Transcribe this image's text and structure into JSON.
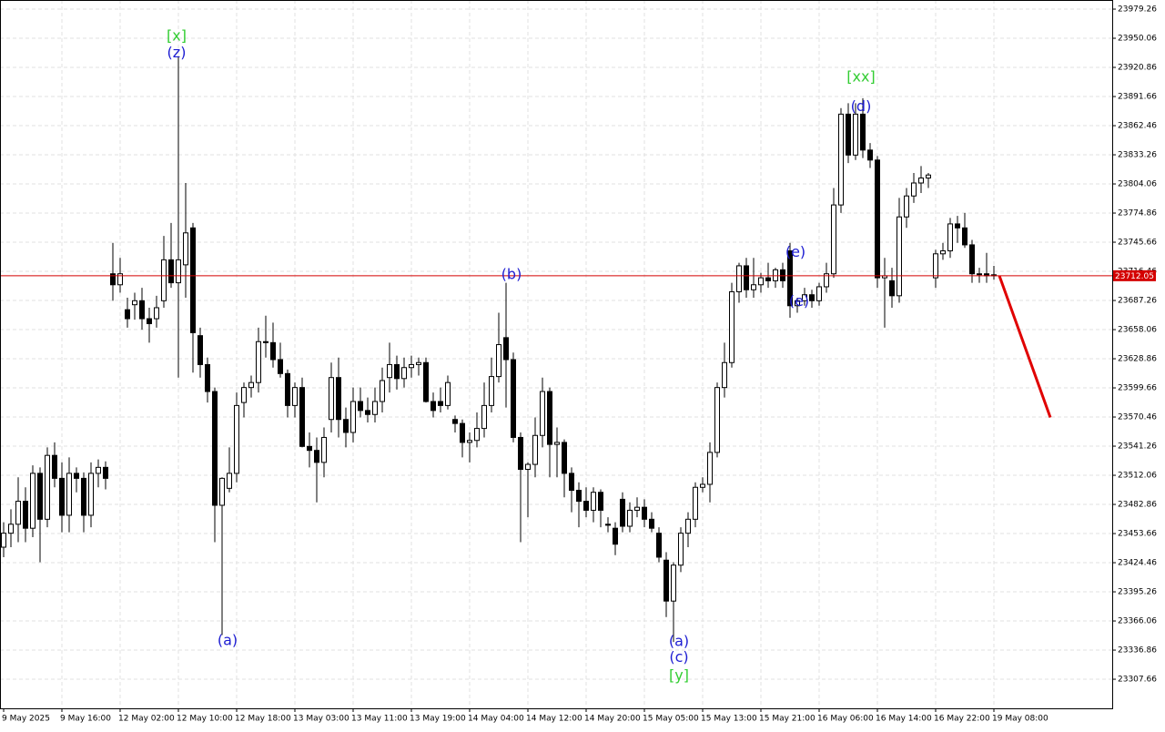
{
  "chart_data": {
    "type": "candlestick",
    "categories": [
      "9 May 2025",
      null,
      null,
      null,
      null,
      null,
      null,
      null,
      "9 May 16:00",
      null,
      null,
      null,
      null,
      null,
      null,
      null,
      "12 May 02:00",
      null,
      null,
      null,
      null,
      null,
      null,
      null,
      "12 May 10:00",
      null,
      null,
      null,
      null,
      null,
      null,
      null,
      "12 May 18:00",
      null,
      null,
      null,
      null,
      null,
      null,
      null,
      "13 May 03:00",
      null,
      null,
      null,
      null,
      null,
      null,
      null,
      "13 May 11:00",
      null,
      null,
      null,
      null,
      null,
      null,
      null,
      "13 May 19:00",
      null,
      null,
      null,
      null,
      null,
      null,
      null,
      "14 May 04:00",
      null,
      null,
      null,
      null,
      null,
      null,
      null,
      "14 May 12:00",
      null,
      null,
      null,
      null,
      null,
      null,
      null,
      "14 May 20:00",
      null,
      null,
      null,
      null,
      null,
      null,
      null,
      "15 May 05:00",
      null,
      null,
      null,
      null,
      null,
      null,
      null,
      "15 May 13:00",
      null,
      null,
      null,
      null,
      null,
      null,
      null,
      "15 May 21:00",
      null,
      null,
      null,
      null,
      null,
      null,
      null,
      "16 May 06:00",
      null,
      null,
      null,
      null,
      null,
      null,
      null,
      "16 May 14:00",
      null,
      null,
      null,
      null,
      null,
      null,
      null,
      "16 May 22:00",
      null,
      null,
      null,
      null,
      null,
      null,
      null,
      "19 May 08:00"
    ],
    "ohlc": [
      [
        23440,
        23465,
        23430,
        23454
      ],
      [
        23454,
        23478,
        23440,
        23463
      ],
      [
        23463,
        23510,
        23445,
        23486
      ],
      [
        23486,
        23500,
        23445,
        23459
      ],
      [
        23459,
        23522,
        23450,
        23514
      ],
      [
        23514,
        23520,
        23425,
        23468
      ],
      [
        23468,
        23540,
        23460,
        23532
      ],
      [
        23532,
        23545,
        23500,
        23509
      ],
      [
        23509,
        23525,
        23455,
        23472
      ],
      [
        23472,
        23530,
        23455,
        23514
      ],
      [
        23514,
        23520,
        23495,
        23509
      ],
      [
        23509,
        23515,
        23455,
        23472
      ],
      [
        23472,
        23525,
        23460,
        23514
      ],
      [
        23514,
        23528,
        23500,
        23520
      ],
      [
        23520,
        23526,
        23498,
        23509
      ],
      [
        23714,
        23745,
        23687,
        23703
      ],
      [
        23703,
        23730,
        23695,
        23714
      ],
      [
        23678,
        23690,
        23660,
        23669
      ],
      [
        23683,
        23695,
        23668,
        23687
      ],
      [
        23687,
        23700,
        23658,
        23669
      ],
      [
        23669,
        23680,
        23645,
        23664
      ],
      [
        23669,
        23692,
        23660,
        23680
      ],
      [
        23687,
        23752,
        23680,
        23728
      ],
      [
        23728,
        23765,
        23700,
        23705
      ],
      [
        23705,
        23932,
        23610,
        23728
      ],
      [
        23723,
        23805,
        23690,
        23755
      ],
      [
        23760,
        23765,
        23615,
        23655
      ],
      [
        23652,
        23660,
        23610,
        23623
      ],
      [
        23623,
        23630,
        23585,
        23596
      ],
      [
        23596,
        23600,
        23445,
        23482
      ],
      [
        23482,
        23510,
        23352,
        23509
      ],
      [
        23499,
        23540,
        23495,
        23514
      ],
      [
        23514,
        23595,
        23505,
        23582
      ],
      [
        23585,
        23605,
        23570,
        23600
      ],
      [
        23600,
        23612,
        23590,
        23605
      ],
      [
        23605,
        23660,
        23595,
        23646
      ],
      [
        23646,
        23672,
        23630,
        23645
      ],
      [
        23645,
        23665,
        23620,
        23628
      ],
      [
        23628,
        23645,
        23610,
        23614
      ],
      [
        23614,
        23618,
        23570,
        23582
      ],
      [
        23582,
        23605,
        23570,
        23600
      ],
      [
        23600,
        23610,
        23540,
        23541
      ],
      [
        23541,
        23555,
        23520,
        23537
      ],
      [
        23537,
        23550,
        23485,
        23525
      ],
      [
        23525,
        23560,
        23510,
        23550
      ],
      [
        23568,
        23625,
        23555,
        23610
      ],
      [
        23610,
        23630,
        23550,
        23568
      ],
      [
        23568,
        23580,
        23540,
        23555
      ],
      [
        23555,
        23600,
        23545,
        23586
      ],
      [
        23586,
        23600,
        23570,
        23577
      ],
      [
        23577,
        23590,
        23565,
        23573
      ],
      [
        23573,
        23600,
        23565,
        23586
      ],
      [
        23586,
        23620,
        23575,
        23607
      ],
      [
        23610,
        23645,
        23595,
        23623
      ],
      [
        23623,
        23632,
        23598,
        23609
      ],
      [
        23609,
        23630,
        23600,
        23620
      ],
      [
        23620,
        23632,
        23610,
        23623
      ],
      [
        23623,
        23630,
        23612,
        23625
      ],
      [
        23625,
        23630,
        23585,
        23586
      ],
      [
        23586,
        23595,
        23570,
        23577
      ],
      [
        23586,
        23600,
        23575,
        23582
      ],
      [
        23582,
        23612,
        23578,
        23605
      ],
      [
        23568,
        23572,
        23555,
        23564
      ],
      [
        23564,
        23568,
        23530,
        23545
      ],
      [
        23545,
        23555,
        23525,
        23547
      ],
      [
        23547,
        23575,
        23540,
        23559
      ],
      [
        23559,
        23605,
        23550,
        23582
      ],
      [
        23582,
        23630,
        23575,
        23611
      ],
      [
        23611,
        23675,
        23605,
        23643
      ],
      [
        23650,
        23705,
        23580,
        23628
      ],
      [
        23628,
        23635,
        23545,
        23550
      ],
      [
        23550,
        23555,
        23445,
        23518
      ],
      [
        23518,
        23525,
        23470,
        23523
      ],
      [
        23523,
        23570,
        23510,
        23552
      ],
      [
        23552,
        23610,
        23540,
        23596
      ],
      [
        23596,
        23600,
        23510,
        23543
      ],
      [
        23543,
        23560,
        23510,
        23545
      ],
      [
        23545,
        23548,
        23490,
        23514
      ],
      [
        23514,
        23520,
        23475,
        23497
      ],
      [
        23497,
        23505,
        23460,
        23486
      ],
      [
        23486,
        23500,
        23470,
        23477
      ],
      [
        23477,
        23500,
        23465,
        23495
      ],
      [
        23495,
        23498,
        23460,
        23477
      ],
      [
        23463,
        23470,
        23455,
        23462
      ],
      [
        23459,
        23465,
        23432,
        23443
      ],
      [
        23488,
        23495,
        23455,
        23461
      ],
      [
        23461,
        23485,
        23455,
        23477
      ],
      [
        23477,
        23490,
        23470,
        23480
      ],
      [
        23480,
        23488,
        23460,
        23468
      ],
      [
        23468,
        23475,
        23455,
        23459
      ],
      [
        23454,
        23460,
        23425,
        23430
      ],
      [
        23427,
        23435,
        23370,
        23386
      ],
      [
        23386,
        23425,
        23345,
        23422
      ],
      [
        23422,
        23460,
        23415,
        23454
      ],
      [
        23454,
        23475,
        23440,
        23468
      ],
      [
        23468,
        23505,
        23460,
        23500
      ],
      [
        23500,
        23510,
        23495,
        23503
      ],
      [
        23503,
        23545,
        23485,
        23535
      ],
      [
        23535,
        23605,
        23530,
        23600
      ],
      [
        23600,
        23645,
        23590,
        23625
      ],
      [
        23625,
        23705,
        23620,
        23696
      ],
      [
        23696,
        23725,
        23685,
        23722
      ],
      [
        23722,
        23730,
        23690,
        23698
      ],
      [
        23698,
        23730,
        23690,
        23703
      ],
      [
        23703,
        23715,
        23695,
        23710
      ],
      [
        23710,
        23725,
        23700,
        23707
      ],
      [
        23707,
        23720,
        23700,
        23718
      ],
      [
        23718,
        23725,
        23700,
        23707
      ],
      [
        23737,
        23745,
        23670,
        23682
      ],
      [
        23682,
        23690,
        23675,
        23687
      ],
      [
        23687,
        23700,
        23682,
        23693
      ],
      [
        23693,
        23698,
        23680,
        23687
      ],
      [
        23687,
        23705,
        23682,
        23701
      ],
      [
        23701,
        23725,
        23695,
        23714
      ],
      [
        23714,
        23800,
        23710,
        23783
      ],
      [
        23783,
        23880,
        23775,
        23874
      ],
      [
        23874,
        23885,
        23825,
        23833
      ],
      [
        23833,
        23885,
        23828,
        23874
      ],
      [
        23874,
        23890,
        23830,
        23838
      ],
      [
        23838,
        23845,
        23820,
        23828
      ],
      [
        23828,
        23832,
        23700,
        23710
      ],
      [
        23710,
        23730,
        23660,
        23712
      ],
      [
        23707,
        23720,
        23680,
        23692
      ],
      [
        23692,
        23790,
        23685,
        23771
      ],
      [
        23771,
        23800,
        23760,
        23792
      ],
      [
        23792,
        23815,
        23785,
        23805
      ],
      [
        23805,
        23822,
        23795,
        23810
      ],
      [
        23810,
        23815,
        23800,
        23813
      ],
      [
        23710,
        23738,
        23700,
        23734
      ],
      [
        23734,
        23745,
        23728,
        23737
      ],
      [
        23737,
        23770,
        23730,
        23764
      ],
      [
        23764,
        23772,
        23745,
        23760
      ],
      [
        23760,
        23775,
        23740,
        23743
      ],
      [
        23743,
        23748,
        23705,
        23714
      ],
      [
        23714,
        23720,
        23705,
        23714
      ],
      [
        23714,
        23735,
        23705,
        23712
      ],
      [
        23713,
        23722,
        23708,
        23712.05
      ]
    ],
    "up_color": "#ffffff",
    "down_color": "#000000",
    "ylim": [
      23278.5,
      23988.4
    ],
    "yticks": [
      23979.26,
      23950.06,
      23920.86,
      23891.66,
      23862.46,
      23833.26,
      23804.06,
      23774.86,
      23745.66,
      23716.46,
      23687.26,
      23658.06,
      23628.86,
      23599.66,
      23570.46,
      23541.26,
      23512.06,
      23482.86,
      23453.66,
      23424.46,
      23395.26,
      23366.06,
      23336.86,
      23307.66
    ],
    "grid": true,
    "price_line": {
      "value": 23712.05,
      "color": "#d40000"
    },
    "forecast_line": {
      "values": [
        23712.05,
        23570
      ],
      "color": "#e00000"
    },
    "annotations": [
      {
        "text": "[x]",
        "candle": 23.75,
        "value": 23952,
        "color": "#32cd32"
      },
      {
        "text": "(z)",
        "candle": 23.75,
        "value": 23935,
        "color": "#1e1ed2"
      },
      {
        "text": "(a)",
        "candle": 30.75,
        "value": 23346,
        "color": "#1e1ed2"
      },
      {
        "text": "(b)",
        "candle": 69.75,
        "value": 23713,
        "color": "#1e1ed2"
      },
      {
        "text": "(a)",
        "candle": 92.75,
        "value": 23345,
        "color": "#1e1ed2"
      },
      {
        "text": "(c)",
        "candle": 92.75,
        "value": 23329,
        "color": "#1e1ed2"
      },
      {
        "text": "[y]",
        "candle": 92.75,
        "value": 23311,
        "color": "#32cd32"
      },
      {
        "text": "(e)",
        "candle": 108.75,
        "value": 23735,
        "color": "#1e1ed2"
      },
      {
        "text": "(e)",
        "candle": 109.25,
        "value": 23686,
        "color": "#1e1ed2"
      },
      {
        "text": "[xx]",
        "candle": 117.75,
        "value": 23911,
        "color": "#32cd32"
      },
      {
        "text": "(d)",
        "candle": 117.75,
        "value": 23881,
        "color": "#1e1ed2"
      }
    ]
  }
}
